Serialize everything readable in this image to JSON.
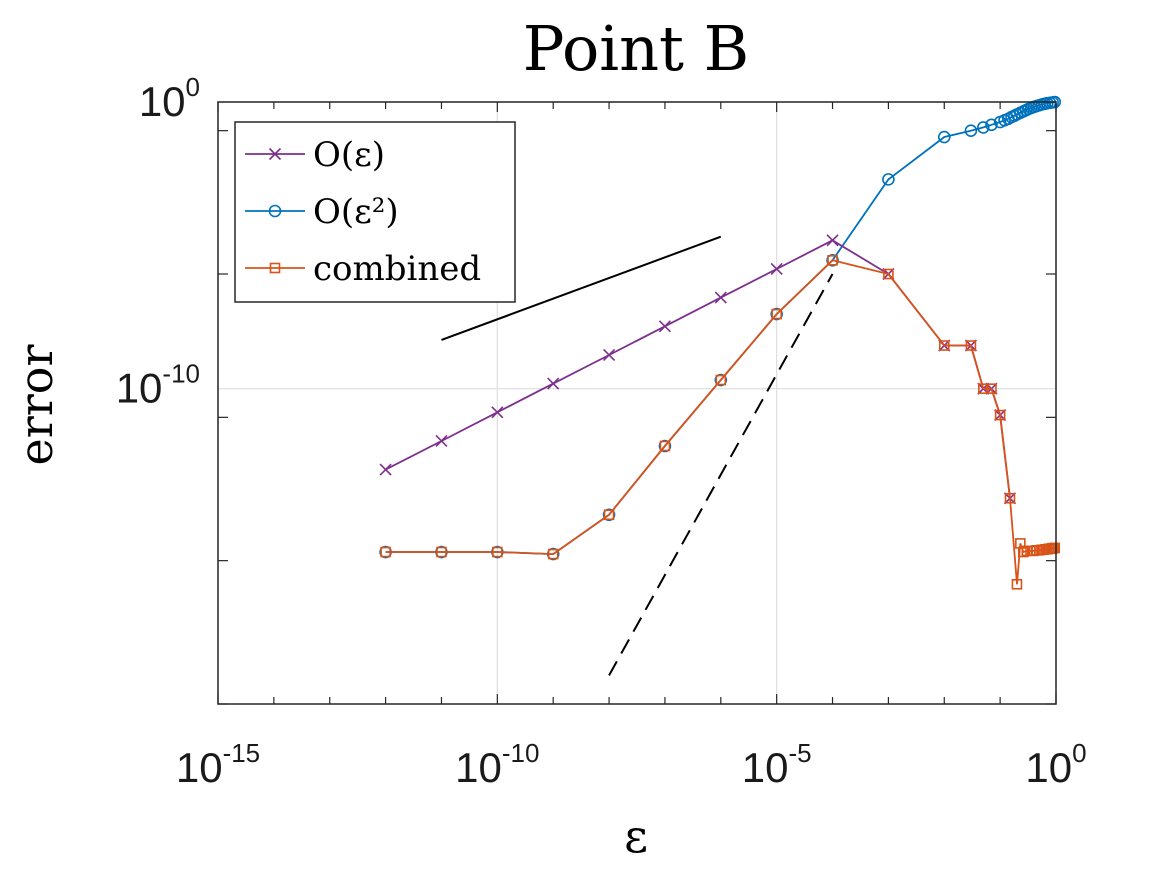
{
  "chart_data": {
    "type": "line",
    "title": "Point B",
    "xlabel": "ε",
    "ylabel": "error",
    "x_scale": "log",
    "y_scale": "log",
    "xlim": [
      1e-15,
      1
    ],
    "ylim": [
      1e-21,
      1
    ],
    "x_ticks": [
      {
        "base": "10",
        "exp": "-15",
        "value": 1e-15
      },
      {
        "base": "10",
        "exp": "-10",
        "value": 1e-10
      },
      {
        "base": "10",
        "exp": "-5",
        "value": 1e-05
      },
      {
        "base": "10",
        "exp": "0",
        "value": 1
      }
    ],
    "y_ticks": [
      {
        "base": "10",
        "exp": "-10",
        "value": 1e-10
      },
      {
        "base": "10",
        "exp": "0",
        "value": 1
      }
    ],
    "grid": true,
    "legend": {
      "position": "top-left",
      "entries": [
        {
          "label": "O(ε)",
          "color": "#7e2f8e",
          "marker": "x"
        },
        {
          "label": "O(ε²)",
          "color": "#0072bd",
          "marker": "circle"
        },
        {
          "label": "combined",
          "color": "#d95319",
          "marker": "square"
        }
      ]
    },
    "series": [
      {
        "name": "O(ε)",
        "color": "#7e2f8e",
        "marker": "x",
        "x": [
          1e-12,
          1e-11,
          1e-10,
          1e-09,
          1e-08,
          1e-07,
          1e-06,
          1e-05,
          0.0001,
          0.001,
          0.01,
          0.03,
          0.05,
          0.07,
          0.1,
          0.15
        ],
        "y": [
          1.5e-13,
          1.5e-12,
          1.5e-11,
          1.5e-10,
          1.5e-09,
          1.5e-08,
          1.5e-07,
          1.5e-06,
          1.5e-05,
          1e-06,
          3.2e-09,
          3.2e-09,
          1e-10,
          1e-10,
          1.2e-11,
          1.5e-14
        ]
      },
      {
        "name": "O(ε²)",
        "color": "#0072bd",
        "marker": "circle",
        "x": [
          1e-12,
          1e-11,
          1e-10,
          1e-09,
          1e-08,
          1e-07,
          1e-06,
          1e-05,
          0.0001,
          0.001,
          0.01,
          0.03,
          0.05,
          0.07,
          0.1,
          0.12,
          0.14,
          0.16,
          0.18,
          0.2,
          0.23,
          0.26,
          0.29,
          0.32,
          0.36,
          0.4,
          0.45,
          0.5,
          0.56,
          0.63,
          0.7,
          0.78,
          0.87,
          0.95
        ],
        "y": [
          2e-16,
          2e-16,
          2e-16,
          1.7e-16,
          4e-15,
          1e-12,
          2e-10,
          4e-08,
          3e-06,
          0.002,
          0.06,
          0.1,
          0.13,
          0.16,
          0.2,
          0.23,
          0.26,
          0.3,
          0.33,
          0.37,
          0.42,
          0.47,
          0.52,
          0.57,
          0.62,
          0.67,
          0.72,
          0.77,
          0.82,
          0.87,
          0.91,
          0.94,
          0.97,
          1.0
        ]
      },
      {
        "name": "combined",
        "color": "#d95319",
        "marker": "square",
        "x": [
          1e-12,
          1e-11,
          1e-10,
          1e-09,
          1e-08,
          1e-07,
          1e-06,
          1e-05,
          0.0001,
          0.001,
          0.01,
          0.03,
          0.05,
          0.07,
          0.1,
          0.15,
          0.2,
          0.23,
          0.26,
          0.3,
          0.35,
          0.4,
          0.45,
          0.5,
          0.55,
          0.6,
          0.65,
          0.7,
          0.75,
          0.8,
          0.85,
          0.9,
          0.95
        ],
        "y": [
          2e-16,
          2e-16,
          2e-16,
          1.7e-16,
          4e-15,
          1e-12,
          2e-10,
          4e-08,
          3e-06,
          1e-06,
          3.2e-09,
          3.2e-09,
          1e-10,
          1e-10,
          1.2e-11,
          1.5e-14,
          1.5e-17,
          4e-16,
          2e-16,
          2.2e-16,
          2.2e-16,
          2.2e-16,
          2.3e-16,
          2.3e-16,
          2.4e-16,
          2.4e-16,
          2.5e-16,
          2.5e-16,
          2.6e-16,
          2.6e-16,
          2.7e-16,
          2.7e-16,
          2.8e-16
        ]
      }
    ],
    "reference_lines": [
      {
        "style": "solid",
        "color": "#000000",
        "x": [
          1e-11,
          1e-06
        ],
        "y": [
          5e-09,
          2e-05
        ]
      },
      {
        "style": "dashed",
        "color": "#000000",
        "x": [
          1e-08,
          0.0001
        ],
        "y": [
          1e-20,
          1e-06
        ]
      }
    ]
  }
}
